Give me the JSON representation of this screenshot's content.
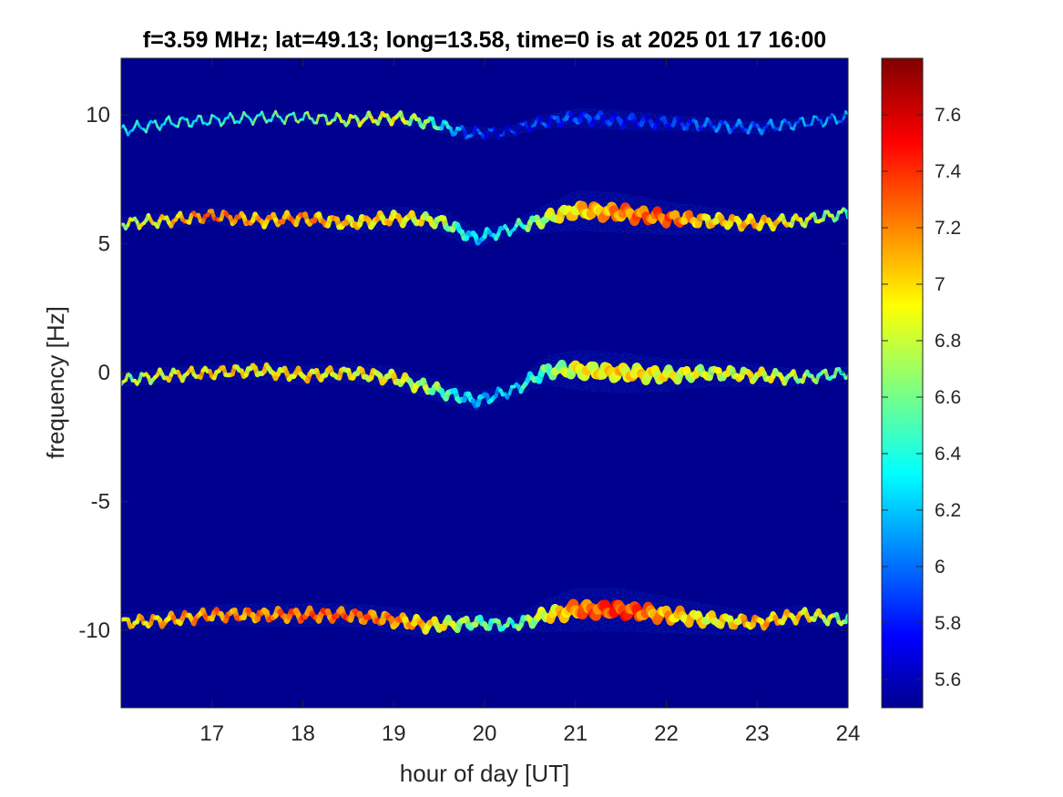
{
  "chart_data": {
    "type": "heatmap",
    "title": "f=3.59 MHz;  lat=49.13; long=13.58, time=0 is at 2025 01 17 16:00",
    "xlabel": "hour of day [UT]",
    "ylabel": "frequency [Hz]",
    "xlim": [
      16,
      24
    ],
    "ylim": [
      -13,
      12.2
    ],
    "xticks": [
      17,
      18,
      19,
      20,
      21,
      22,
      23,
      24
    ],
    "xtick_labels": [
      "17",
      "18",
      "19",
      "20",
      "21",
      "22",
      "23",
      "24"
    ],
    "yticks": [
      10,
      5,
      0,
      -5,
      -10
    ],
    "ytick_labels": [
      "10",
      "5",
      "0",
      "-5",
      "-10"
    ],
    "colormap": "jet",
    "background_color": "#00008f",
    "colorbar": {
      "clim": [
        5.5,
        7.8
      ],
      "ticks": [
        5.6,
        5.8,
        6,
        6.2,
        6.4,
        6.6,
        6.8,
        7,
        7.2,
        7.4,
        7.6
      ],
      "tick_labels": [
        "5.6",
        "5.8",
        "6",
        "6.2",
        "6.4",
        "6.6",
        "6.8",
        "7",
        "7.2",
        "7.4",
        "7.6"
      ]
    },
    "traces": [
      {
        "name": "line_+10Hz",
        "center": [
          [
            16.0,
            9.4
          ],
          [
            16.5,
            9.7
          ],
          [
            17.0,
            9.8
          ],
          [
            17.5,
            9.9
          ],
          [
            18.0,
            9.9
          ],
          [
            18.5,
            9.8
          ],
          [
            19.0,
            9.9
          ],
          [
            19.4,
            9.7
          ],
          [
            19.8,
            9.3
          ],
          [
            20.2,
            9.3
          ],
          [
            20.6,
            9.7
          ],
          [
            21.0,
            9.9
          ],
          [
            21.5,
            9.8
          ],
          [
            22.0,
            9.7
          ],
          [
            22.5,
            9.6
          ],
          [
            23.0,
            9.5
          ],
          [
            23.5,
            9.7
          ],
          [
            24.0,
            9.9
          ]
        ],
        "width_hz": [
          0.3,
          0.3,
          0.3,
          0.3,
          0.3,
          0.4,
          0.5,
          0.5,
          0.4,
          0.3,
          0.4,
          0.6,
          0.6,
          0.5,
          0.4,
          0.4,
          0.3,
          0.3
        ],
        "intensity": [
          6.3,
          6.4,
          6.4,
          6.5,
          6.6,
          6.8,
          6.9,
          6.6,
          6.0,
          5.8,
          5.9,
          5.9,
          5.8,
          5.8,
          6.0,
          6.0,
          6.1,
          6.1
        ]
      },
      {
        "name": "line_+6Hz",
        "center": [
          [
            16.0,
            5.8
          ],
          [
            16.5,
            5.9
          ],
          [
            17.0,
            6.1
          ],
          [
            17.5,
            5.9
          ],
          [
            18.0,
            6.0
          ],
          [
            18.5,
            5.8
          ],
          [
            19.0,
            6.0
          ],
          [
            19.5,
            5.9
          ],
          [
            19.9,
            5.2
          ],
          [
            20.3,
            5.6
          ],
          [
            20.7,
            6.0
          ],
          [
            21.0,
            6.3
          ],
          [
            21.5,
            6.2
          ],
          [
            22.0,
            6.0
          ],
          [
            22.5,
            5.9
          ],
          [
            23.0,
            5.8
          ],
          [
            23.5,
            5.9
          ],
          [
            24.0,
            6.2
          ]
        ],
        "width_hz": [
          0.4,
          0.5,
          0.5,
          0.6,
          0.6,
          0.7,
          0.7,
          0.7,
          0.6,
          0.4,
          0.9,
          1.2,
          1.2,
          1.0,
          0.8,
          0.7,
          0.5,
          0.4
        ],
        "intensity": [
          6.8,
          7.0,
          7.3,
          7.1,
          7.2,
          7.0,
          7.0,
          6.8,
          6.2,
          6.4,
          6.8,
          7.0,
          7.2,
          7.3,
          7.0,
          7.1,
          6.9,
          6.6
        ]
      },
      {
        "name": "line_0Hz",
        "center": [
          [
            16.0,
            -0.3
          ],
          [
            16.5,
            -0.1
          ],
          [
            17.0,
            0.0
          ],
          [
            17.5,
            0.1
          ],
          [
            18.0,
            -0.1
          ],
          [
            18.5,
            0.0
          ],
          [
            19.0,
            -0.2
          ],
          [
            19.4,
            -0.6
          ],
          [
            19.9,
            -1.1
          ],
          [
            20.3,
            -0.7
          ],
          [
            20.7,
            0.1
          ],
          [
            21.0,
            0.1
          ],
          [
            21.5,
            0.0
          ],
          [
            22.0,
            -0.1
          ],
          [
            22.5,
            0.0
          ],
          [
            23.0,
            -0.1
          ],
          [
            23.5,
            -0.2
          ],
          [
            24.0,
            0.0
          ]
        ],
        "width_hz": [
          0.4,
          0.5,
          0.5,
          0.6,
          0.6,
          0.6,
          0.7,
          0.7,
          0.6,
          0.4,
          0.9,
          1.2,
          1.2,
          1.0,
          0.8,
          0.7,
          0.5,
          0.4
        ],
        "intensity": [
          6.7,
          6.9,
          7.0,
          6.9,
          7.0,
          6.9,
          6.9,
          6.7,
          6.2,
          6.3,
          6.6,
          6.9,
          7.0,
          6.9,
          6.8,
          6.9,
          6.7,
          6.5
        ]
      },
      {
        "name": "line_-10Hz",
        "center": [
          [
            16.0,
            -9.7
          ],
          [
            16.5,
            -9.6
          ],
          [
            17.0,
            -9.4
          ],
          [
            17.5,
            -9.4
          ],
          [
            18.0,
            -9.4
          ],
          [
            18.5,
            -9.4
          ],
          [
            19.0,
            -9.6
          ],
          [
            19.4,
            -9.8
          ],
          [
            19.9,
            -9.7
          ],
          [
            20.3,
            -9.8
          ],
          [
            20.7,
            -9.4
          ],
          [
            21.0,
            -9.2
          ],
          [
            21.5,
            -9.2
          ],
          [
            22.0,
            -9.4
          ],
          [
            22.5,
            -9.6
          ],
          [
            23.0,
            -9.7
          ],
          [
            23.5,
            -9.4
          ],
          [
            24.0,
            -9.6
          ]
        ],
        "width_hz": [
          0.5,
          0.6,
          0.6,
          0.7,
          0.7,
          0.7,
          0.8,
          0.8,
          0.7,
          0.5,
          1.0,
          1.3,
          1.3,
          1.1,
          0.9,
          0.7,
          0.6,
          0.5
        ],
        "intensity": [
          7.0,
          7.1,
          7.2,
          7.2,
          7.3,
          7.3,
          7.2,
          7.0,
          6.6,
          6.5,
          6.9,
          7.2,
          7.4,
          7.1,
          6.9,
          7.1,
          7.0,
          6.7
        ]
      }
    ]
  }
}
